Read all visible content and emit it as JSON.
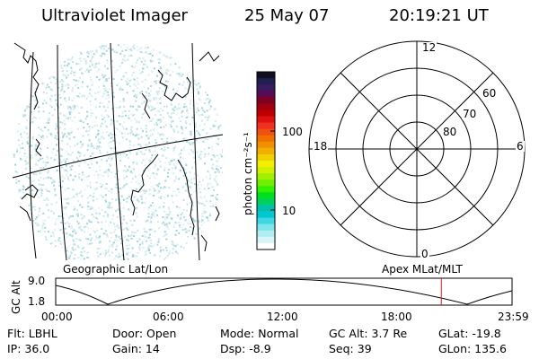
{
  "header": {
    "title": "Ultraviolet Imager",
    "date": "25 May 07",
    "time": "20:19:21 UT"
  },
  "colorbar": {
    "label": "photon cm⁻²s⁻¹",
    "ticks": [
      "100",
      "10"
    ],
    "colors": [
      "#101020",
      "#202050",
      "#3a1a60",
      "#5a0a50",
      "#800020",
      "#a00010",
      "#c00000",
      "#e01010",
      "#f03020",
      "#f05010",
      "#f07000",
      "#f09000",
      "#f0b000",
      "#f0d000",
      "#f0f000",
      "#d0f000",
      "#a0f000",
      "#70f000",
      "#30f000",
      "#00e020",
      "#00d060",
      "#00c0b0",
      "#00c8d0",
      "#40d8e0",
      "#80e4ec",
      "#b0eef4",
      "#d8f6fa",
      "#ffffff"
    ]
  },
  "polar_plot": {
    "mlt_labels": [
      "12",
      "18",
      "6",
      "0"
    ],
    "lat_labels": [
      "60",
      "70",
      "80"
    ]
  },
  "orbit": {
    "left_label": "Geographic Lat/Lon",
    "right_label": "Apex  MLat/MLT",
    "y_axis_title": "GC Alt",
    "y_ticks": [
      "9.0",
      "1.8"
    ],
    "x_ticks": [
      "00:00",
      "06:00",
      "12:00",
      "18:00",
      "23:59"
    ],
    "current_time_fraction": 0.845,
    "marker_color": "#cc2222"
  },
  "status": {
    "flt": "Flt: LBHL",
    "ip": "IP: 36.0",
    "door": "Door: Open",
    "gain": "Gain: 14",
    "mode": "Mode: Normal",
    "dsp": "Dsp:    -8.9",
    "gc_alt": "GC Alt: 3.7 Re",
    "seq": "Seq: 39",
    "glat": "GLat: -19.8",
    "glon": "GLon: 135.6"
  }
}
